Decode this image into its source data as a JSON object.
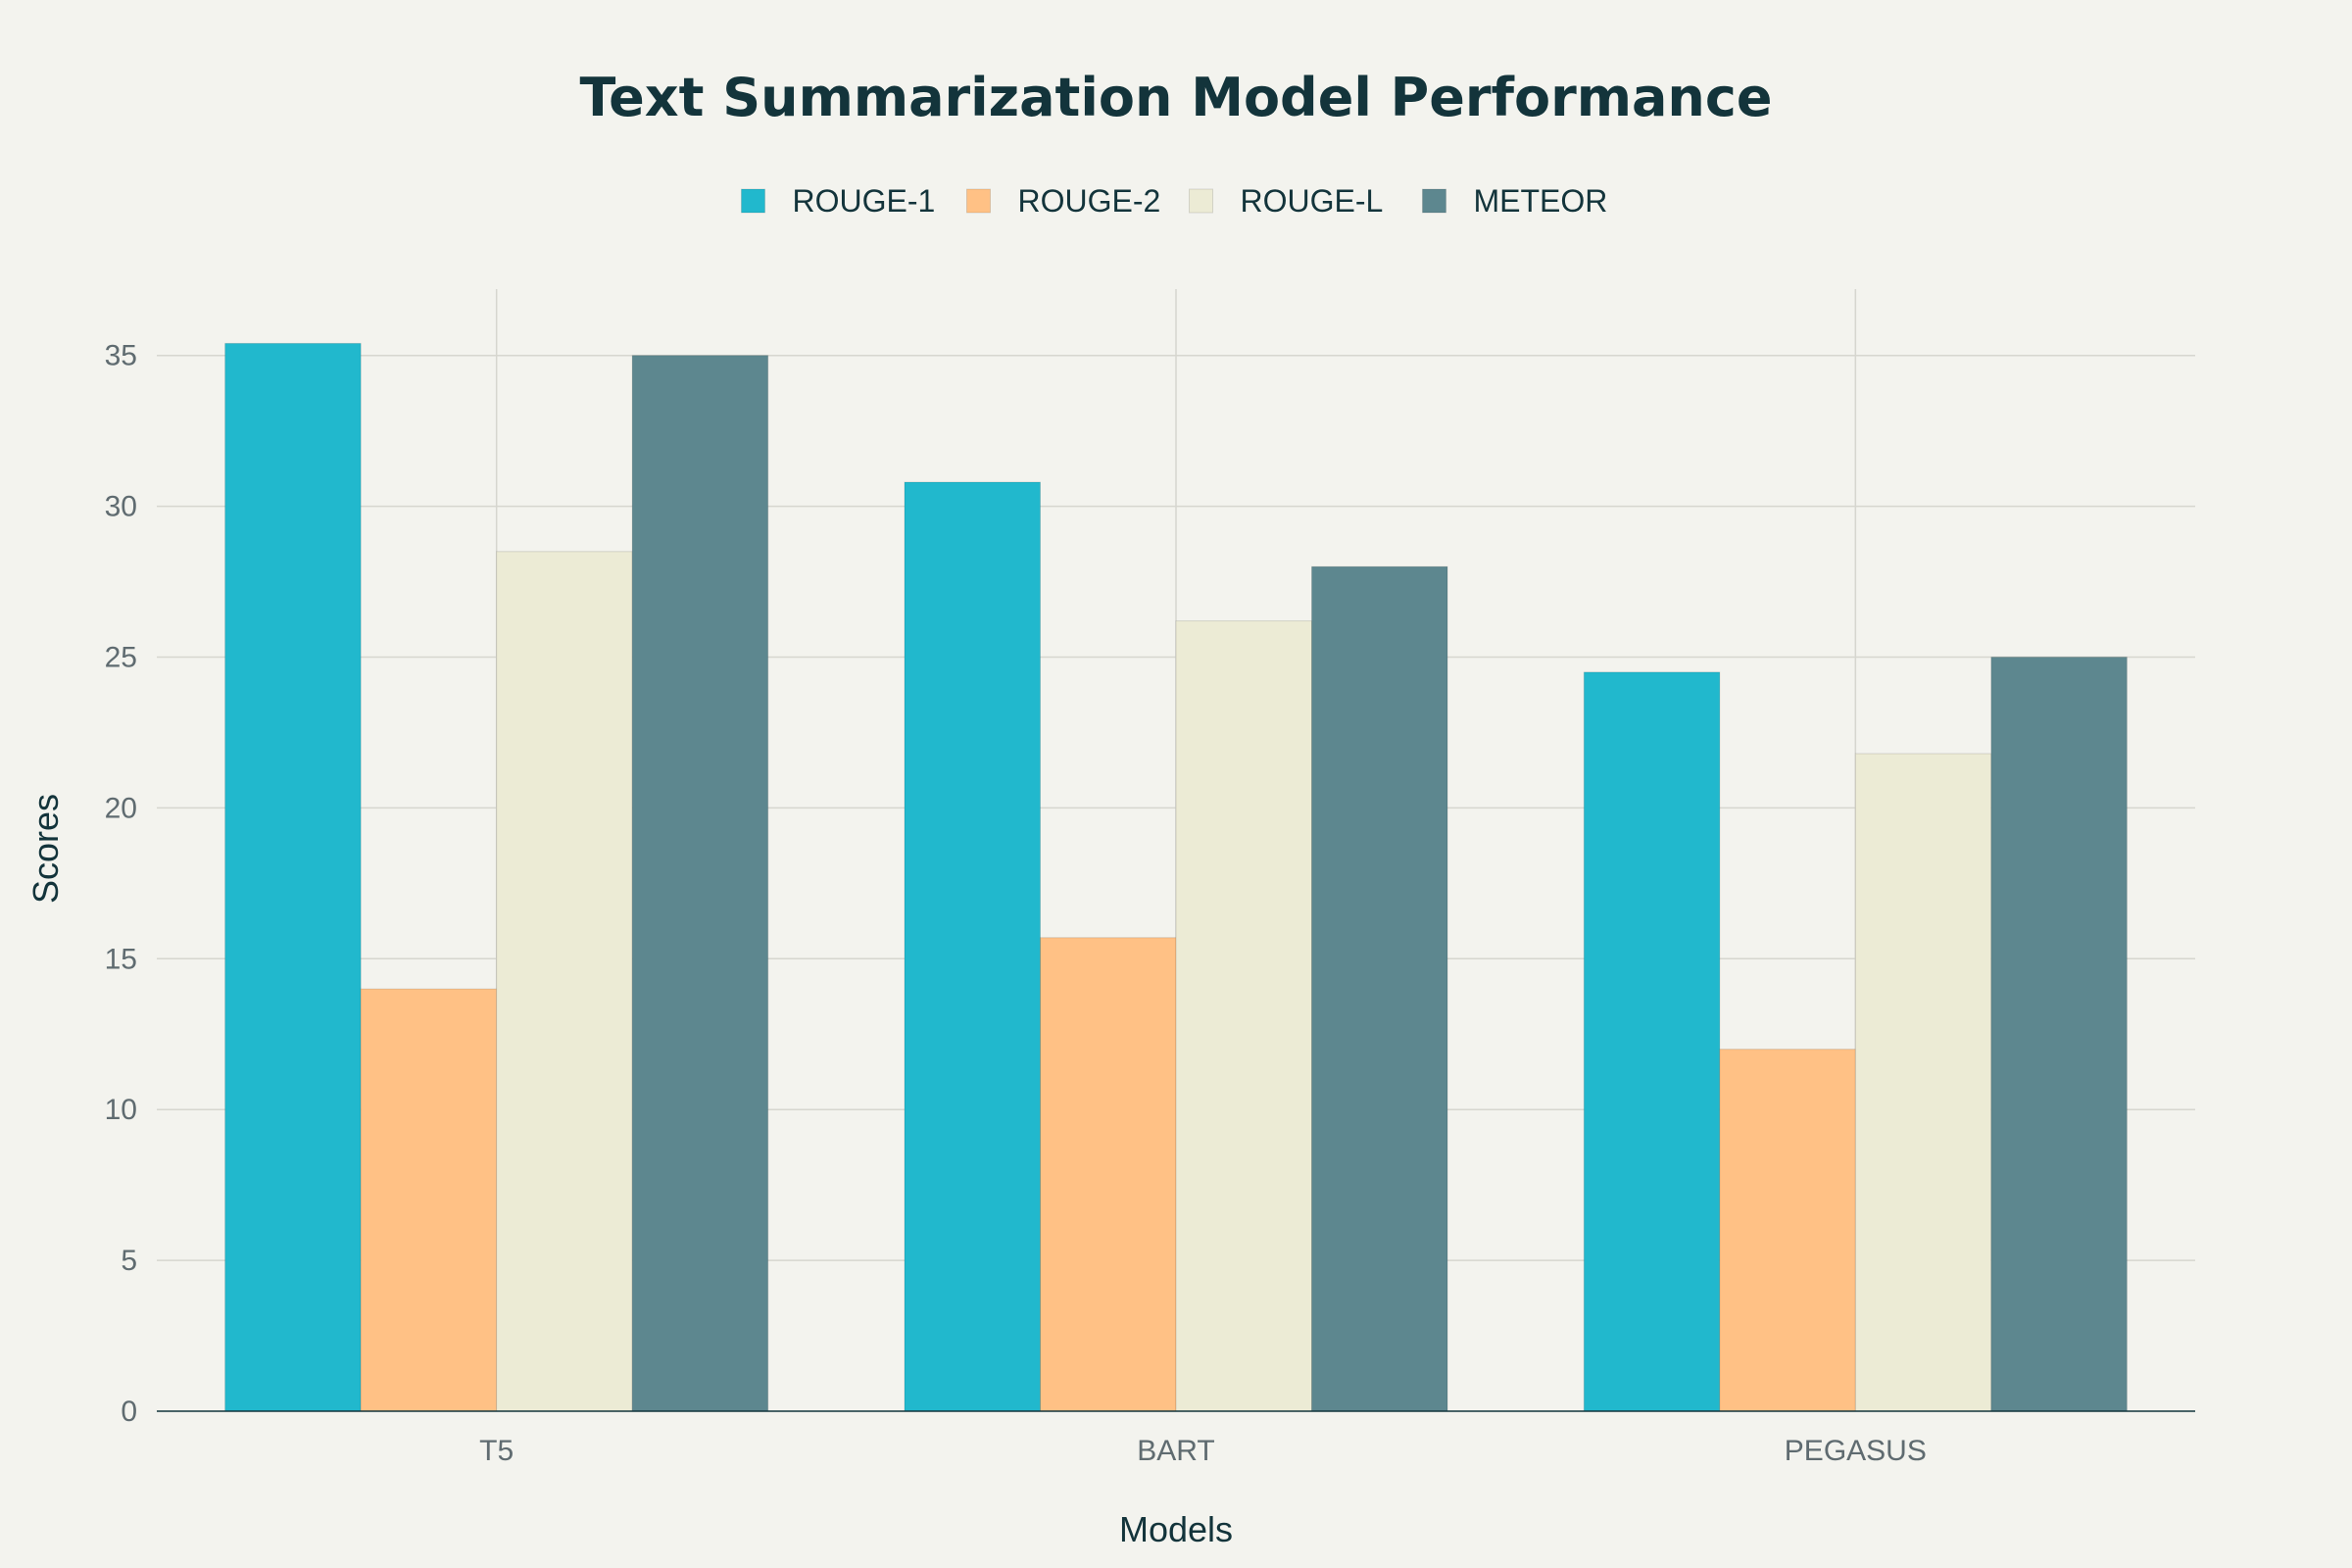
{
  "chart_data": {
    "type": "bar",
    "title": "Text Summarization Model Performance",
    "xlabel": "Models",
    "ylabel": "Scores",
    "categories": [
      "T5",
      "BART",
      "PEGASUS"
    ],
    "series": [
      {
        "name": "ROUGE-1",
        "color": "#21B8CD",
        "values": [
          35.4,
          30.8,
          24.5
        ]
      },
      {
        "name": "ROUGE-2",
        "color": "#FFC185",
        "values": [
          14.0,
          15.7,
          12.0
        ]
      },
      {
        "name": "ROUGE-L",
        "color": "#ECEBD5",
        "values": [
          28.5,
          26.2,
          21.8
        ]
      },
      {
        "name": "METEOR",
        "color": "#5D878F",
        "values": [
          35.0,
          28.0,
          25.0
        ]
      }
    ],
    "ylim": [
      0,
      37.2
    ],
    "yticks": [
      0,
      5,
      10,
      15,
      20,
      25,
      30,
      35
    ],
    "grid": true,
    "legend_position": "top-center"
  }
}
